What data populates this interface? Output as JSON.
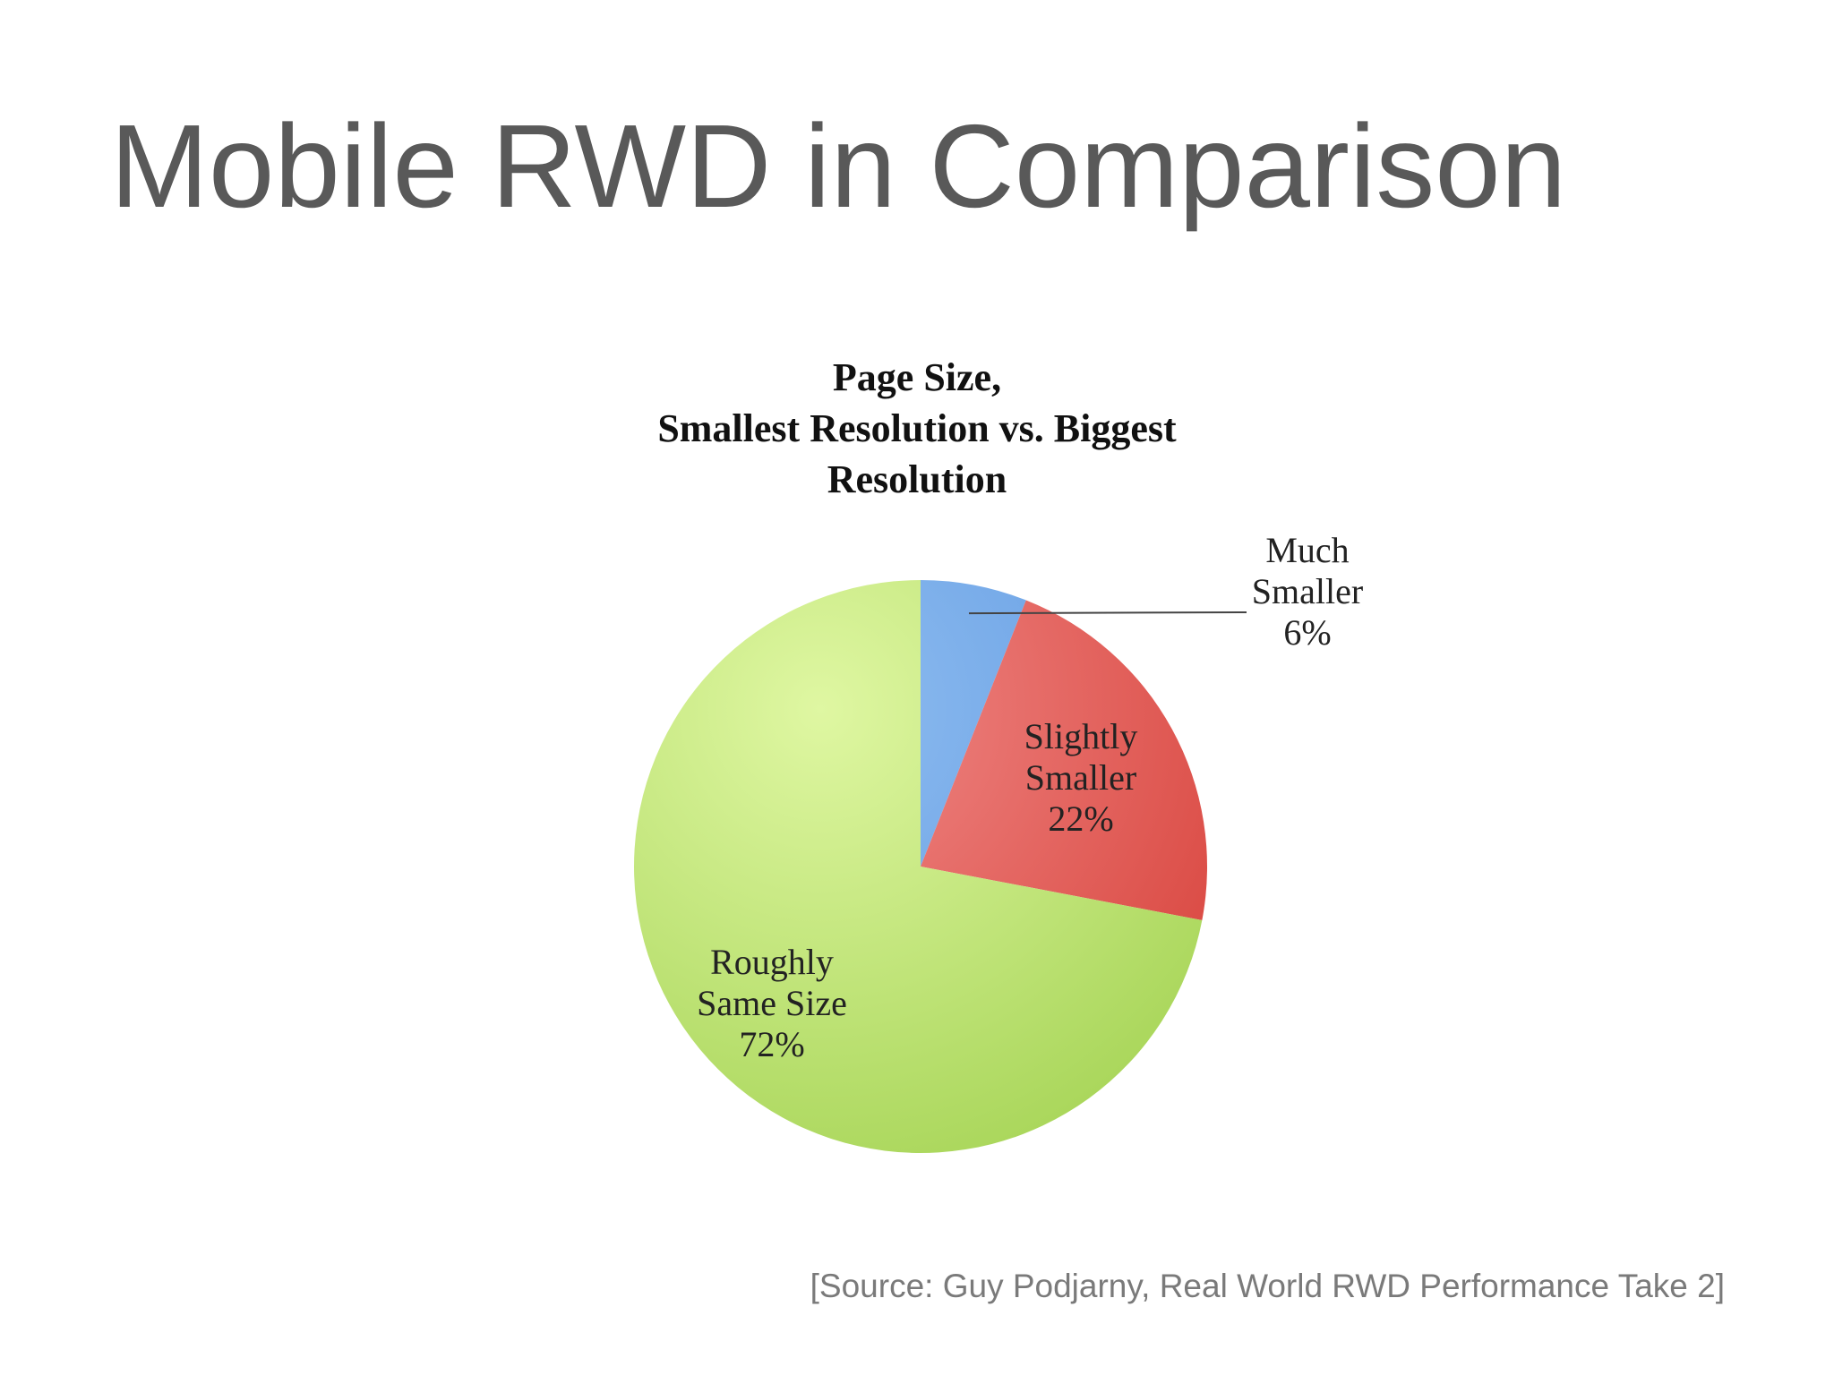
{
  "slide": {
    "title": "Mobile RWD in Comparison",
    "source": "[Source: Guy Podjarny, Real World RWD Performance Take 2]"
  },
  "chart_data": {
    "type": "pie",
    "title_lines": [
      "Page Size,",
      "Smallest Resolution vs. Biggest",
      "Resolution"
    ],
    "slices": [
      {
        "label_lines": [
          "Much",
          "Smaller"
        ],
        "value": 6,
        "value_label": "6%",
        "color_light": "#8fbdf0",
        "color_dark": "#5a95e0"
      },
      {
        "label_lines": [
          "Slightly",
          "Smaller"
        ],
        "value": 22,
        "value_label": "22%",
        "color_light": "#f08a88",
        "color_dark": "#d9463f"
      },
      {
        "label_lines": [
          "Roughly",
          "Same Size"
        ],
        "value": 72,
        "value_label": "72%",
        "color_light": "#dff7a2",
        "color_dark": "#a9d65a"
      }
    ],
    "start_angle_deg": 0,
    "direction": "clockwise",
    "legend": "none"
  }
}
